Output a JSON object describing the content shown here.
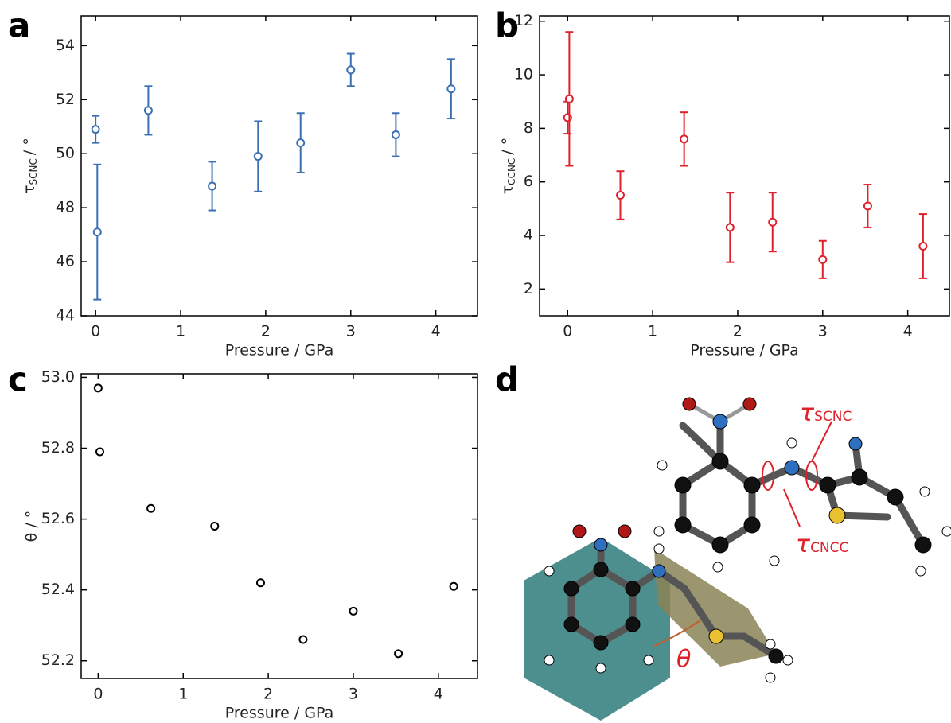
{
  "chart_data": [
    {
      "type": "scatter",
      "panel_label": "a",
      "xlabel": "Pressure / GPa",
      "ylabel": {
        "symbol": "τ",
        "subscript": "SCNC",
        "unit": "/ °"
      },
      "x": [
        0.0,
        0.02,
        0.62,
        1.37,
        1.91,
        2.41,
        3.0,
        3.53,
        4.18
      ],
      "values": [
        50.9,
        47.1,
        51.6,
        48.8,
        49.9,
        50.4,
        53.1,
        50.7,
        52.4
      ],
      "errors": [
        0.5,
        2.5,
        0.9,
        0.9,
        1.3,
        1.1,
        0.6,
        0.8,
        1.1
      ],
      "color": "#3a70b2",
      "xlim": [
        -0.17,
        4.49
      ],
      "xticks": [
        0,
        1,
        2,
        3,
        4
      ],
      "ylim": [
        44,
        55.1
      ],
      "yticks": [
        44,
        46,
        48,
        50,
        52,
        54
      ]
    },
    {
      "type": "scatter",
      "panel_label": "b",
      "xlabel": "Pressure / GPa",
      "ylabel": {
        "symbol": "τ",
        "subscript": "CCNC",
        "unit": "/ °"
      },
      "x": [
        0.0,
        0.02,
        0.62,
        1.37,
        1.91,
        2.41,
        3.0,
        3.53,
        4.18
      ],
      "values": [
        8.4,
        9.1,
        5.5,
        7.6,
        4.3,
        4.5,
        3.1,
        5.1,
        3.6
      ],
      "errors": [
        0.6,
        2.5,
        0.9,
        1.0,
        1.3,
        1.1,
        0.7,
        0.8,
        1.2
      ],
      "color": "#e0202a",
      "xlim": [
        -0.33,
        4.49
      ],
      "xticks": [
        0,
        1,
        2,
        3,
        4
      ],
      "ylim": [
        1.0,
        12.2
      ],
      "yticks": [
        2,
        4,
        6,
        8,
        10,
        12
      ]
    },
    {
      "type": "scatter",
      "panel_label": "c",
      "xlabel": "Pressure / GPa",
      "ylabel": "θ / °",
      "x": [
        0.0,
        0.02,
        0.62,
        1.37,
        1.91,
        2.41,
        3.0,
        3.53,
        4.18
      ],
      "values": [
        52.97,
        52.79,
        52.63,
        52.58,
        52.42,
        52.26,
        52.34,
        52.22,
        52.41
      ],
      "color": "#000000",
      "xlim": [
        -0.2,
        4.46
      ],
      "xticks": [
        0,
        1,
        2,
        3,
        4
      ],
      "ylim": [
        52.15,
        53.01
      ],
      "yticks": [
        52.2,
        52.4,
        52.6,
        52.8,
        {
          "value": 53,
          "label": "53.0"
        }
      ]
    }
  ],
  "diagram": {
    "panel_label": "d",
    "labels": [
      {
        "symbol": "τ",
        "subscript": "SCNC"
      },
      {
        "symbol": "τ",
        "subscript": "CNCC"
      },
      "θ"
    ]
  }
}
